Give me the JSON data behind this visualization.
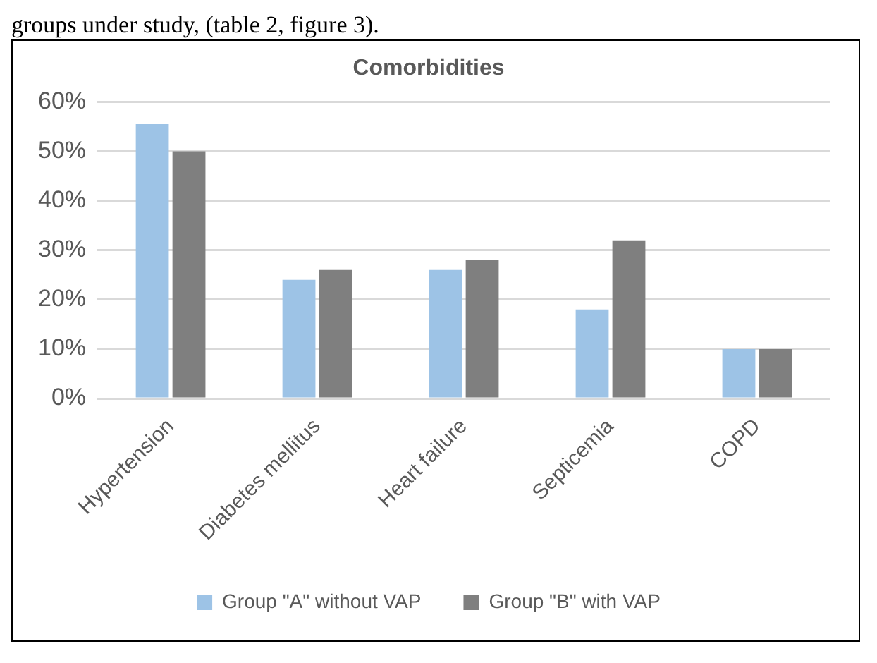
{
  "chart_data": {
    "type": "bar",
    "title": "Comorbidities",
    "annotations": [
      "groups under study, (table 2, figure 3)."
    ],
    "categories": [
      "Hypertension",
      "Diabetes mellitus",
      "Heart failure",
      "Septicemia",
      "COPD"
    ],
    "series": [
      {
        "name": "Group \"A\" without VAP",
        "color": "#9dc3e6",
        "values": [
          55.5,
          24,
          26,
          18,
          10
        ]
      },
      {
        "name": "Group \"B\" with VAP",
        "color": "#7f7f7f",
        "values": [
          50,
          26,
          28,
          32,
          10
        ]
      }
    ],
    "ylim": [
      0,
      60
    ],
    "yticks": [
      {
        "value": 0,
        "label": "0%"
      },
      {
        "value": 10,
        "label": "10%"
      },
      {
        "value": 20,
        "label": "20%"
      },
      {
        "value": 30,
        "label": "30%"
      },
      {
        "value": 40,
        "label": "40%"
      },
      {
        "value": 50,
        "label": "50%"
      },
      {
        "value": 60,
        "label": "60%"
      }
    ],
    "grid": "y",
    "legend": "bottom"
  }
}
